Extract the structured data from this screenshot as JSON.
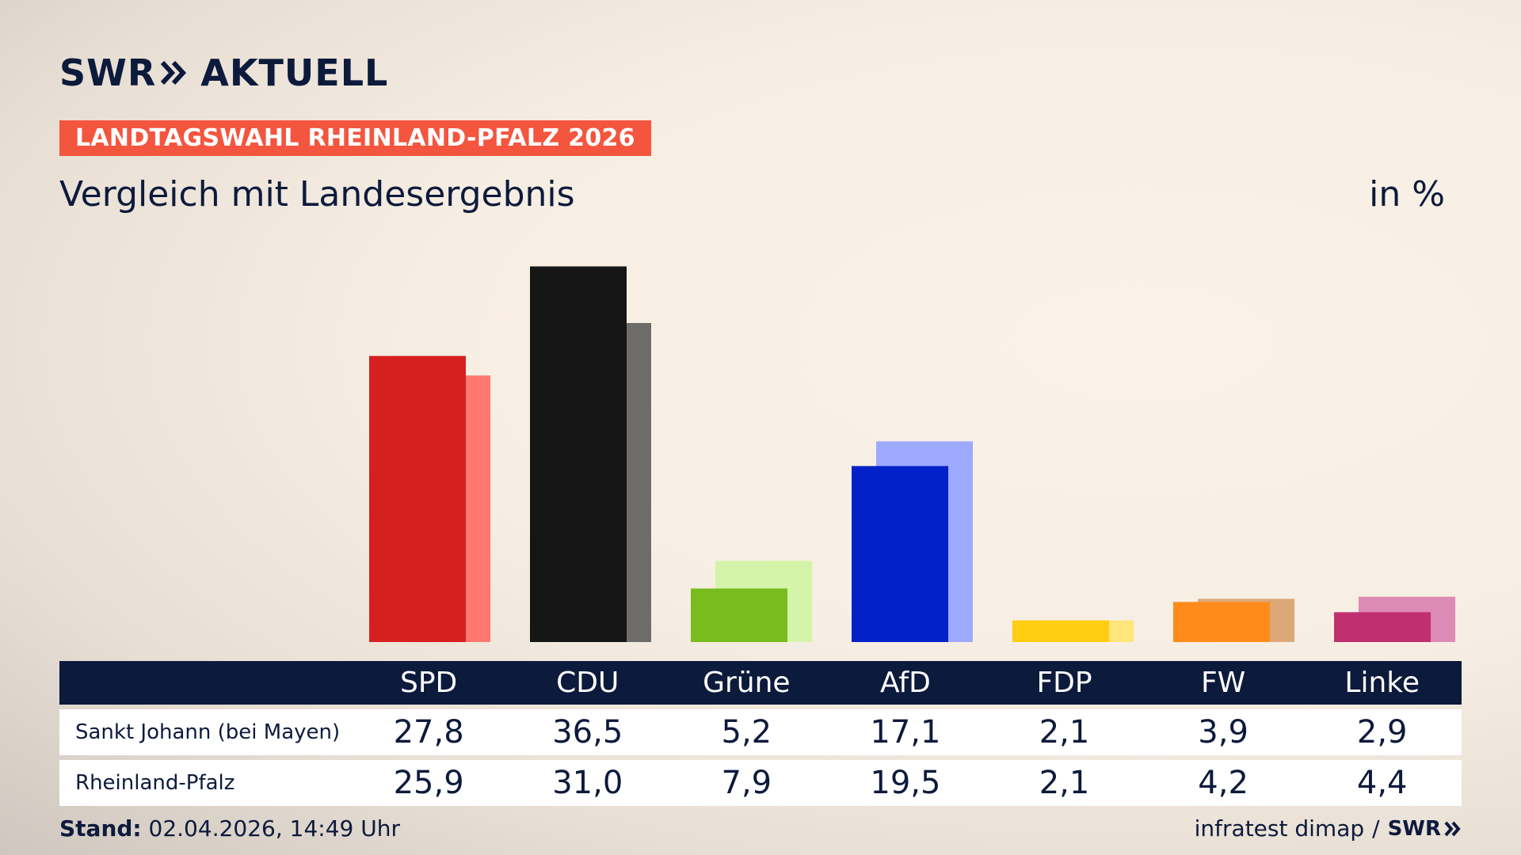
{
  "header": {
    "brand_left": "SWR",
    "brand_right": "AKTUELL",
    "kicker": "LANDTAGSWAHL RHEINLAND-PFALZ 2026",
    "subtitle": "Vergleich mit Landesergebnis",
    "unit": "in %"
  },
  "chart_data": {
    "type": "bar",
    "title": "Vergleich mit Landesergebnis",
    "unit": "in %",
    "categories": [
      "SPD",
      "CDU",
      "Grüne",
      "AfD",
      "FDP",
      "FW",
      "Linke"
    ],
    "series": [
      {
        "name": "Sankt Johann (bei Mayen)",
        "values": [
          27.8,
          36.5,
          5.2,
          17.1,
          2.1,
          3.9,
          2.9
        ]
      },
      {
        "name": "Rheinland-Pfalz",
        "values": [
          25.9,
          31.0,
          7.9,
          19.5,
          2.1,
          4.2,
          4.4
        ]
      }
    ],
    "value_labels": {
      "local": [
        "27,8",
        "36,5",
        "5,2",
        "17,1",
        "2,1",
        "3,9",
        "2,9"
      ],
      "state": [
        "25,9",
        "31,0",
        "7,9",
        "19,5",
        "2,1",
        "4,2",
        "4,4"
      ]
    },
    "colors": {
      "local": [
        "#d62020",
        "#151515",
        "#78bc1e",
        "#0022c8",
        "#ffcd0f",
        "#ff8c1a",
        "#c03070"
      ],
      "state": [
        "#ff776e",
        "#6e6c6a",
        "#d4f5a9",
        "#9eaaff",
        "#ffe57a",
        "#dca878",
        "#dd8ab5"
      ]
    },
    "ylim": [
      0,
      40
    ],
    "grid": false,
    "legend": "table-below"
  },
  "footer": {
    "stand_label": "Stand:",
    "stand_value": "02.04.2026, 14:49 Uhr",
    "source": "infratest dimap",
    "separator": "/",
    "logo": "SWR"
  }
}
